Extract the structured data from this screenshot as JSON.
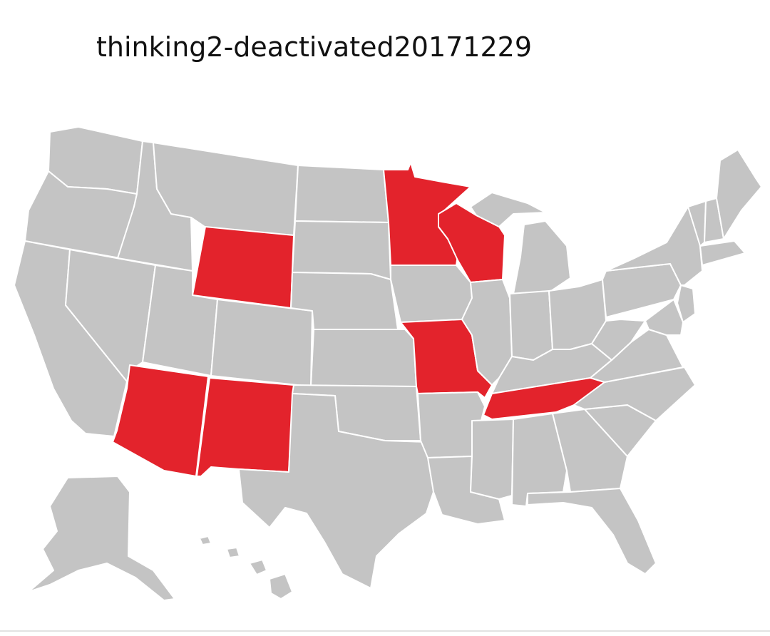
{
  "post": {
    "username": "thinking2-deactivated20171229"
  },
  "map": {
    "subject": "United States state map",
    "base_color": "#c4c4c4",
    "highlight_color": "#e3232c",
    "highlighted_states": [
      "Wyoming",
      "Minnesota",
      "Wisconsin",
      "Missouri",
      "Tennessee",
      "Arizona",
      "New Mexico"
    ]
  }
}
